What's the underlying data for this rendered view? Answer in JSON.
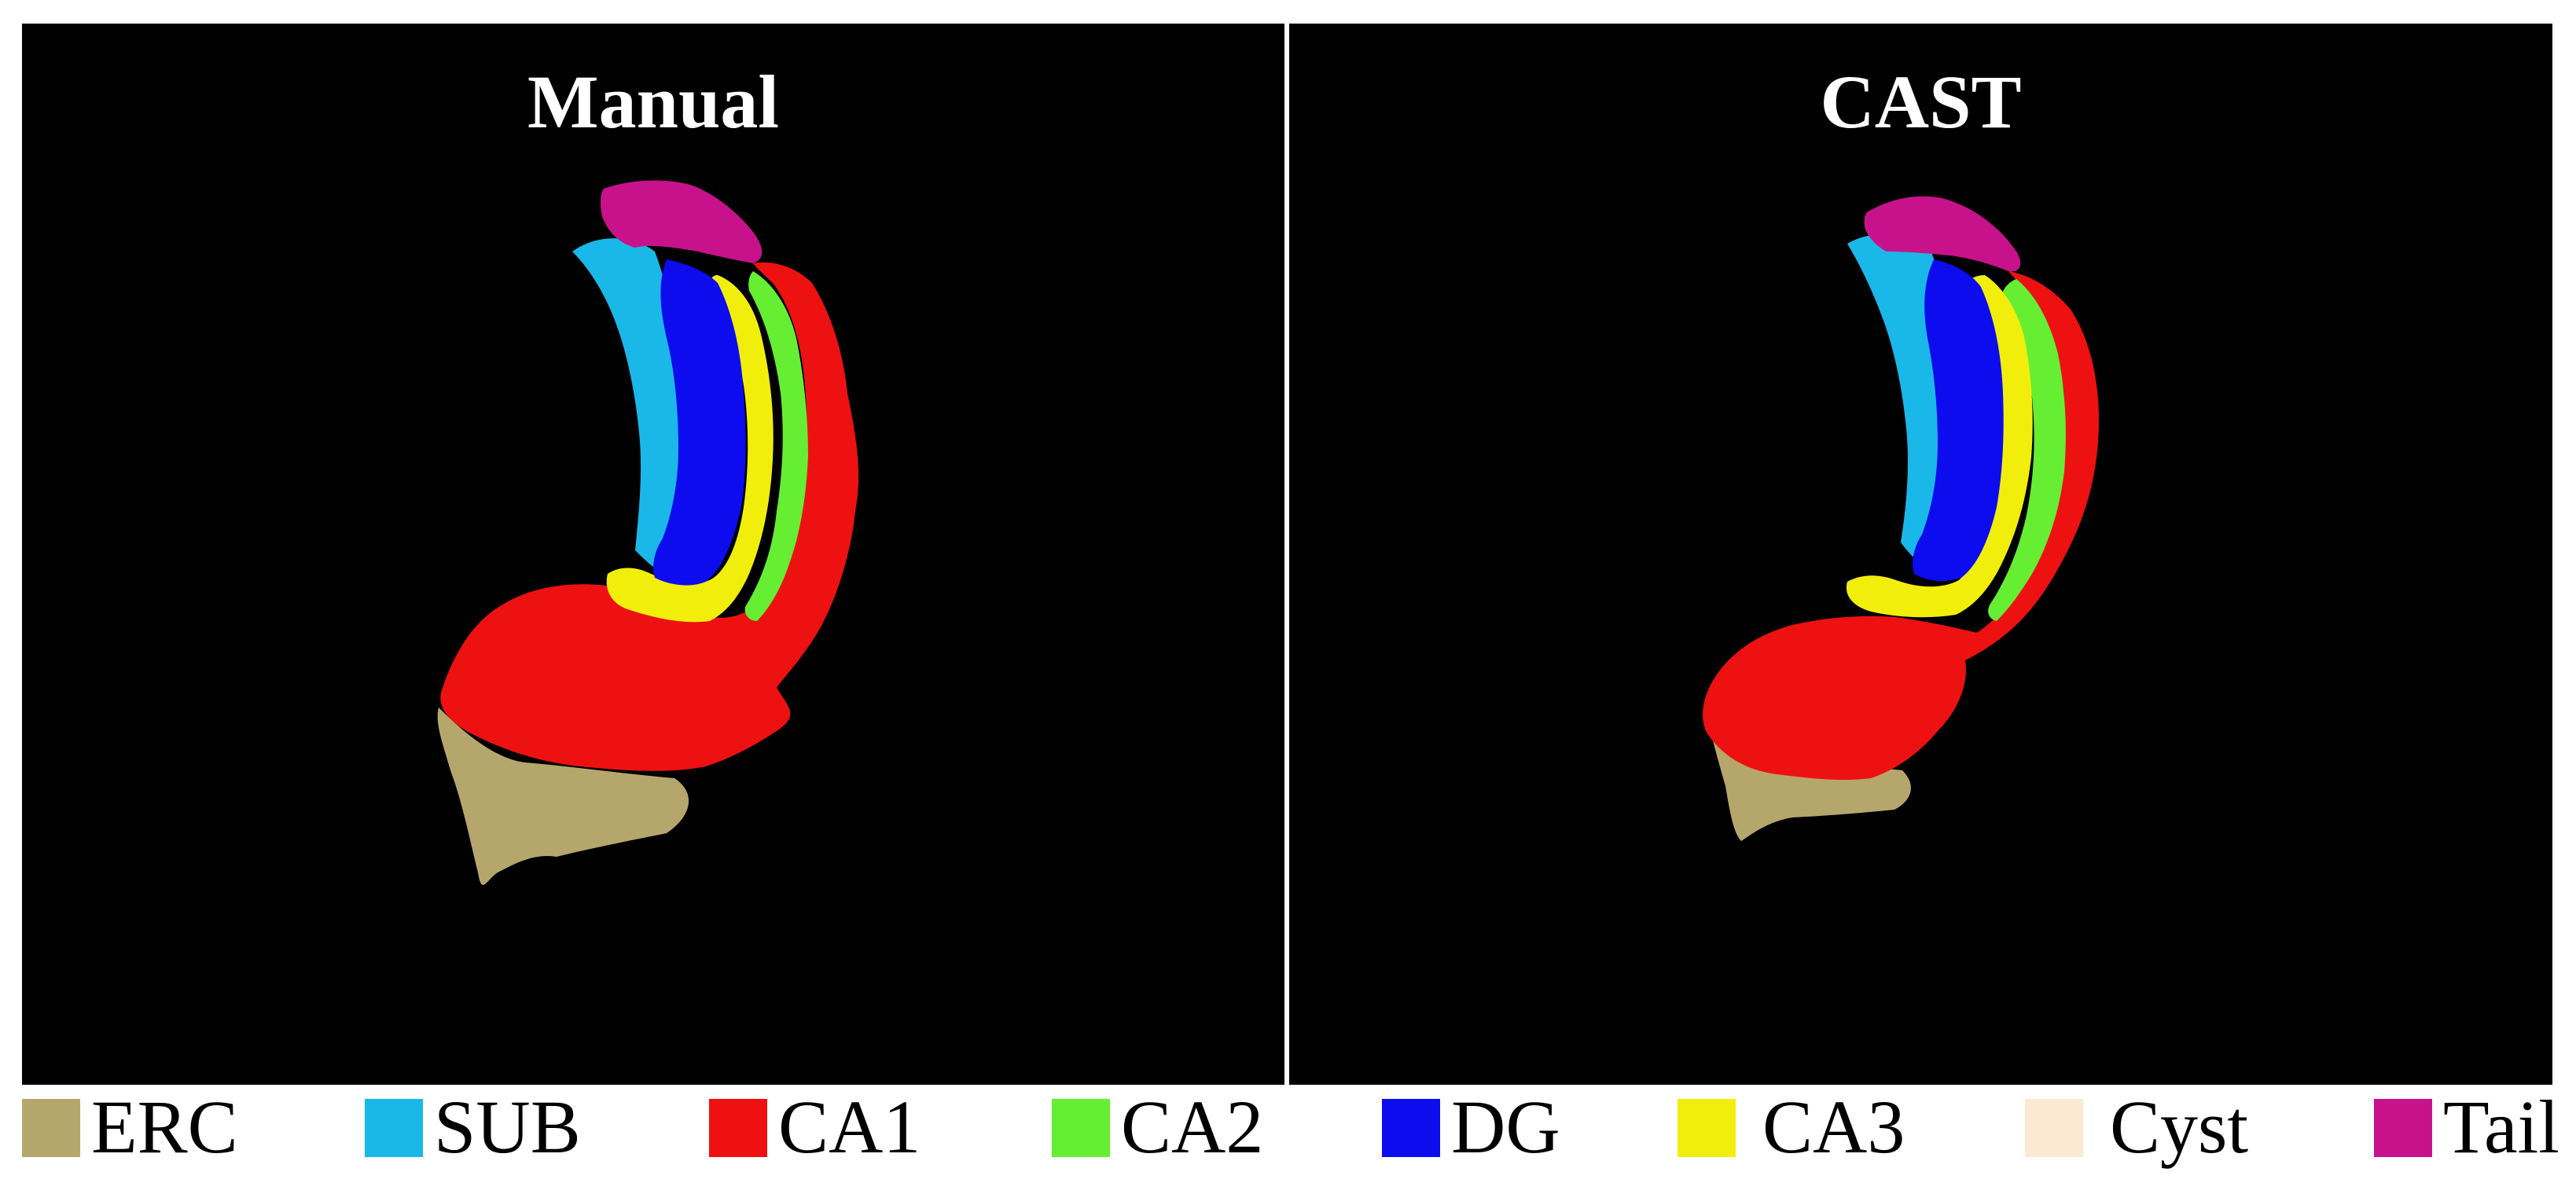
{
  "panels": {
    "left": {
      "title": "Manual"
    },
    "right": {
      "title": "CAST"
    }
  },
  "legend": {
    "items": [
      {
        "label": "ERC",
        "color": "#b5a76c"
      },
      {
        "label": "SUB",
        "color": "#1ab8e8"
      },
      {
        "label": "CA1",
        "color": "#ee1111"
      },
      {
        "label": "CA2",
        "color": "#66ee33"
      },
      {
        "label": "DG",
        "color": "#0c0cee"
      },
      {
        "label": "CA3",
        "color": "#f2ee0c"
      },
      {
        "label": "Cyst",
        "color": "#fbe9d3"
      },
      {
        "label": "Tail",
        "color": "#c8128c"
      }
    ]
  },
  "colors": {
    "background": "#000000",
    "separator": "#ffffff",
    "text_on_dark": "#ffffff",
    "text_on_light": "#000000"
  }
}
